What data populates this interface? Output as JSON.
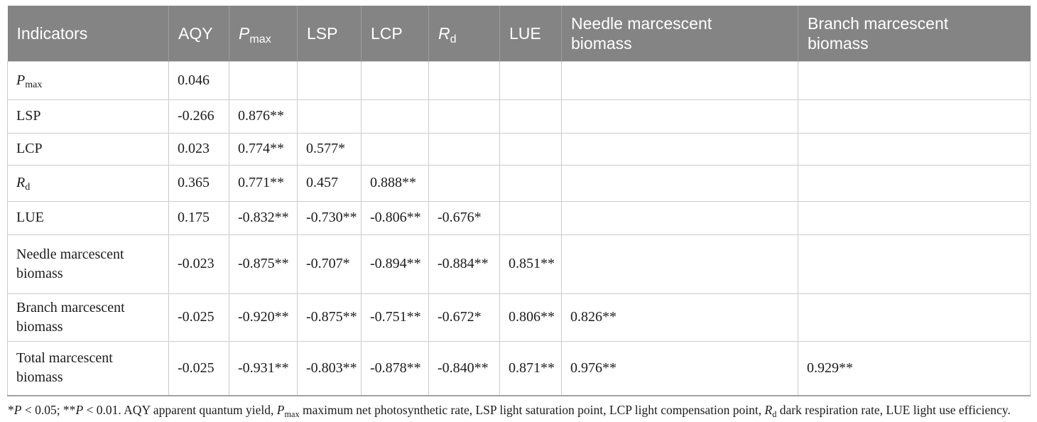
{
  "colors": {
    "header_bg": "#848484",
    "header_text": "#ffffff",
    "header_divider": "#9d9d9d",
    "grid_line": "#cbcbcb",
    "table_bottom_line": "#a2a2a2",
    "body_text": "#1c1c1c"
  },
  "table": {
    "columns": [
      {
        "name": "indicators",
        "segs": [
          {
            "t": "Indicators"
          }
        ]
      },
      {
        "name": "aqy",
        "segs": [
          {
            "t": "AQY"
          }
        ]
      },
      {
        "name": "pmax",
        "segs": [
          {
            "t": "P",
            "i": true
          },
          {
            "t": "max",
            "sub": true
          }
        ]
      },
      {
        "name": "lsp",
        "segs": [
          {
            "t": "LSP"
          }
        ]
      },
      {
        "name": "lcp",
        "segs": [
          {
            "t": "LCP"
          }
        ]
      },
      {
        "name": "rd",
        "segs": [
          {
            "t": "R",
            "i": true
          },
          {
            "t": "d",
            "sub": true
          }
        ]
      },
      {
        "name": "lue",
        "segs": [
          {
            "t": "LUE"
          }
        ]
      },
      {
        "name": "needle-marcescent-biomass",
        "segs": [
          {
            "t": "Needle marcescent biomass"
          }
        ]
      },
      {
        "name": "branch-marcescent-biomass",
        "segs": [
          {
            "t": "Branch marcescent biomass"
          }
        ]
      }
    ],
    "rows": [
      {
        "name": "pmax",
        "label": [
          {
            "t": "P",
            "i": true
          },
          {
            "t": "max",
            "sub": true
          }
        ],
        "values": [
          "0.046",
          "",
          "",
          "",
          "",
          "",
          "",
          ""
        ]
      },
      {
        "name": "lsp",
        "label": [
          {
            "t": "LSP"
          }
        ],
        "values": [
          "-0.266",
          "0.876**",
          "",
          "",
          "",
          "",
          "",
          ""
        ]
      },
      {
        "name": "lcp",
        "label": [
          {
            "t": "LCP"
          }
        ],
        "values": [
          "0.023",
          "0.774**",
          "0.577*",
          "",
          "",
          "",
          "",
          ""
        ]
      },
      {
        "name": "rd",
        "label": [
          {
            "t": "R",
            "i": true
          },
          {
            "t": "d",
            "sub": true
          }
        ],
        "values": [
          "0.365",
          "0.771**",
          "0.457",
          "0.888**",
          "",
          "",
          "",
          ""
        ]
      },
      {
        "name": "lue",
        "label": [
          {
            "t": "LUE"
          }
        ],
        "values": [
          "0.175",
          "-0.832**",
          "-0.730**",
          "-0.806**",
          "-0.676*",
          "",
          "",
          ""
        ]
      },
      {
        "name": "needle-marcescent-biomass",
        "label": [
          {
            "t": "Needle marcescent biomass"
          }
        ],
        "values": [
          "-0.023",
          "-0.875**",
          "-0.707*",
          "-0.894**",
          "-0.884**",
          "0.851**",
          "",
          ""
        ]
      },
      {
        "name": "branch-marcescent-biomass",
        "label": [
          {
            "t": "Branch marcescent biomass"
          }
        ],
        "values": [
          "-0.025",
          "-0.920**",
          "-0.875**",
          "-0.751**",
          "-0.672*",
          "0.806**",
          "0.826**",
          ""
        ]
      },
      {
        "name": "total-marcescent-biomass",
        "label": [
          {
            "t": "Total marcescent biomass"
          }
        ],
        "values": [
          "-0.025",
          "-0.931**",
          "-0.803**",
          "-0.878**",
          "-0.840**",
          "0.871**",
          "0.976**",
          "0.929**"
        ]
      }
    ]
  },
  "footnote": {
    "segs": [
      {
        "t": "*"
      },
      {
        "t": "P",
        "i": true
      },
      {
        "t": " < 0.05; **"
      },
      {
        "t": "P",
        "i": true
      },
      {
        "t": " < 0.01. AQY apparent quantum yield, "
      },
      {
        "t": "P",
        "i": true
      },
      {
        "t": "max",
        "sub": true
      },
      {
        "t": " maximum net photosynthetic rate, LSP light saturation point, LCP light compensation point, "
      },
      {
        "t": "R",
        "i": true
      },
      {
        "t": "d",
        "sub": true
      },
      {
        "t": " dark respiration rate, LUE light use efficiency."
      }
    ]
  }
}
